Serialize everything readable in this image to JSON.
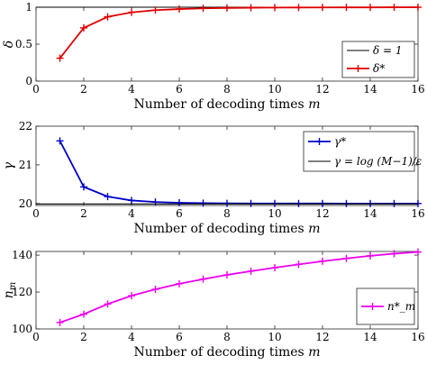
{
  "chart_data": [
    {
      "type": "line",
      "ylabel": "δ",
      "xlabel": "Number of decoding times m",
      "xlim": [
        0,
        16
      ],
      "ylim": [
        0,
        1
      ],
      "xticks": [
        "0",
        "2",
        "4",
        "6",
        "8",
        "10",
        "12",
        "14",
        "16"
      ],
      "yticks": [
        "0",
        "0.5",
        "1"
      ],
      "legend_position": "bottom-right",
      "series": [
        {
          "name": "δ = 1",
          "color": "#000000",
          "marker": "none",
          "x": [
            0,
            16
          ],
          "values": [
            1,
            1
          ]
        },
        {
          "name": "δ*",
          "color": "#e00000",
          "marker": "plus",
          "x": [
            1,
            2,
            3,
            4,
            5,
            6,
            7,
            8,
            9,
            10,
            11,
            12,
            13,
            14,
            15,
            16
          ],
          "values": [
            0.31,
            0.72,
            0.87,
            0.93,
            0.96,
            0.975,
            0.985,
            0.99,
            0.993,
            0.995,
            0.996,
            0.997,
            0.998,
            0.998,
            0.999,
            0.999
          ]
        }
      ]
    },
    {
      "type": "line",
      "ylabel": "γ",
      "xlabel": "Number of decoding times m",
      "xlim": [
        0,
        16
      ],
      "ylim": [
        19.95,
        22
      ],
      "xticks": [
        "0",
        "2",
        "4",
        "6",
        "8",
        "10",
        "12",
        "14",
        "16"
      ],
      "yticks": [
        "20",
        "21",
        "22"
      ],
      "legend_position": "top-right",
      "series": [
        {
          "name": "γ*",
          "color": "#0000cc",
          "marker": "plus",
          "x": [
            1,
            2,
            3,
            4,
            5,
            6,
            7,
            8,
            9,
            10,
            11,
            12,
            13,
            14,
            15,
            16
          ],
          "values": [
            21.62,
            20.43,
            20.18,
            20.08,
            20.04,
            20.02,
            20.01,
            20.005,
            20.003,
            20.002,
            20.001,
            20.001,
            20.0,
            20.0,
            20.0,
            20.0
          ]
        },
        {
          "name": "γ = log (M−1)/ε",
          "color": "#000000",
          "marker": "none",
          "x": [
            0,
            16
          ],
          "values": [
            19.99,
            19.99
          ]
        }
      ]
    },
    {
      "type": "line",
      "ylabel": "n_m",
      "xlabel": "Number of decoding times m",
      "xlim": [
        0,
        16
      ],
      "ylim": [
        100,
        142
      ],
      "xticks": [
        "0",
        "2",
        "4",
        "6",
        "8",
        "10",
        "12",
        "14",
        "16"
      ],
      "yticks": [
        "100",
        "120",
        "140"
      ],
      "legend_position": "bottom-right",
      "series": [
        {
          "name": "n*_m",
          "color": "#ee00ee",
          "marker": "plus",
          "x": [
            1,
            2,
            3,
            4,
            5,
            6,
            7,
            8,
            9,
            10,
            11,
            12,
            13,
            14,
            15,
            16
          ],
          "values": [
            103.5,
            108,
            113.5,
            118,
            121.5,
            124.5,
            127,
            129.3,
            131.3,
            133.2,
            135,
            136.7,
            138.2,
            139.6,
            140.8,
            141.7
          ]
        }
      ]
    }
  ]
}
